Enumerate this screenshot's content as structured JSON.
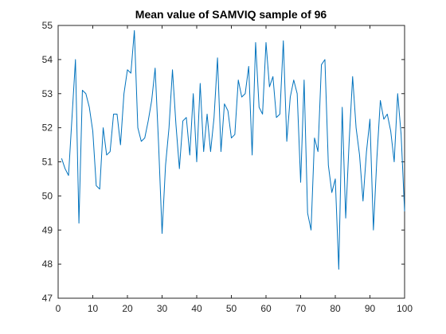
{
  "chart_data": {
    "type": "line",
    "title": "Mean value of SAMVIQ sample of 96",
    "xlabel": "",
    "ylabel": "",
    "xlim": [
      0,
      100
    ],
    "ylim": [
      47,
      55
    ],
    "xticks": [
      0,
      10,
      20,
      30,
      40,
      50,
      60,
      70,
      80,
      90,
      100
    ],
    "yticks": [
      47,
      48,
      49,
      50,
      51,
      52,
      53,
      54,
      55
    ],
    "grid": false,
    "legend": "none",
    "series": [
      {
        "color": "#0072BD",
        "x": [
          1,
          2,
          3,
          4,
          5,
          6,
          7,
          8,
          9,
          10,
          11,
          12,
          13,
          14,
          15,
          16,
          17,
          18,
          19,
          20,
          21,
          22,
          23,
          24,
          25,
          26,
          27,
          28,
          29,
          30,
          31,
          32,
          33,
          34,
          35,
          36,
          37,
          38,
          39,
          40,
          41,
          42,
          43,
          44,
          45,
          46,
          47,
          48,
          49,
          50,
          51,
          52,
          53,
          54,
          55,
          56,
          57,
          58,
          59,
          60,
          61,
          62,
          63,
          64,
          65,
          66,
          67,
          68,
          69,
          70,
          71,
          72,
          73,
          74,
          75,
          76,
          77,
          78,
          79,
          80,
          81,
          82,
          83,
          84,
          85,
          86,
          87,
          88,
          89,
          90,
          91,
          92,
          93,
          94,
          95,
          96,
          97,
          98,
          99,
          100
        ],
        "y": [
          51.1,
          50.8,
          50.6,
          52.3,
          54.0,
          49.2,
          53.1,
          53.0,
          52.6,
          51.9,
          50.3,
          50.2,
          52.0,
          51.2,
          51.3,
          52.4,
          52.4,
          51.5,
          53.0,
          53.7,
          53.6,
          54.85,
          52.0,
          51.6,
          51.7,
          52.2,
          52.8,
          53.75,
          51.5,
          48.9,
          50.9,
          52.0,
          53.7,
          52.1,
          50.8,
          52.2,
          52.3,
          51.2,
          53.0,
          51.0,
          53.3,
          51.3,
          52.4,
          51.3,
          52.3,
          54.05,
          51.3,
          52.7,
          52.5,
          51.7,
          51.8,
          53.4,
          52.9,
          53.0,
          53.8,
          51.2,
          54.5,
          52.6,
          52.4,
          54.5,
          53.2,
          53.5,
          52.3,
          52.4,
          54.55,
          51.6,
          52.9,
          53.4,
          53.0,
          50.4,
          53.4,
          49.5,
          49.0,
          51.7,
          51.3,
          53.85,
          54.0,
          50.9,
          50.1,
          50.5,
          47.85,
          52.6,
          49.35,
          51.6,
          53.5,
          52.0,
          51.2,
          49.85,
          51.3,
          52.25,
          49.0,
          51.1,
          52.8,
          52.25,
          52.4,
          51.9,
          51.0,
          53.0,
          51.8,
          49.55
        ]
      }
    ]
  }
}
